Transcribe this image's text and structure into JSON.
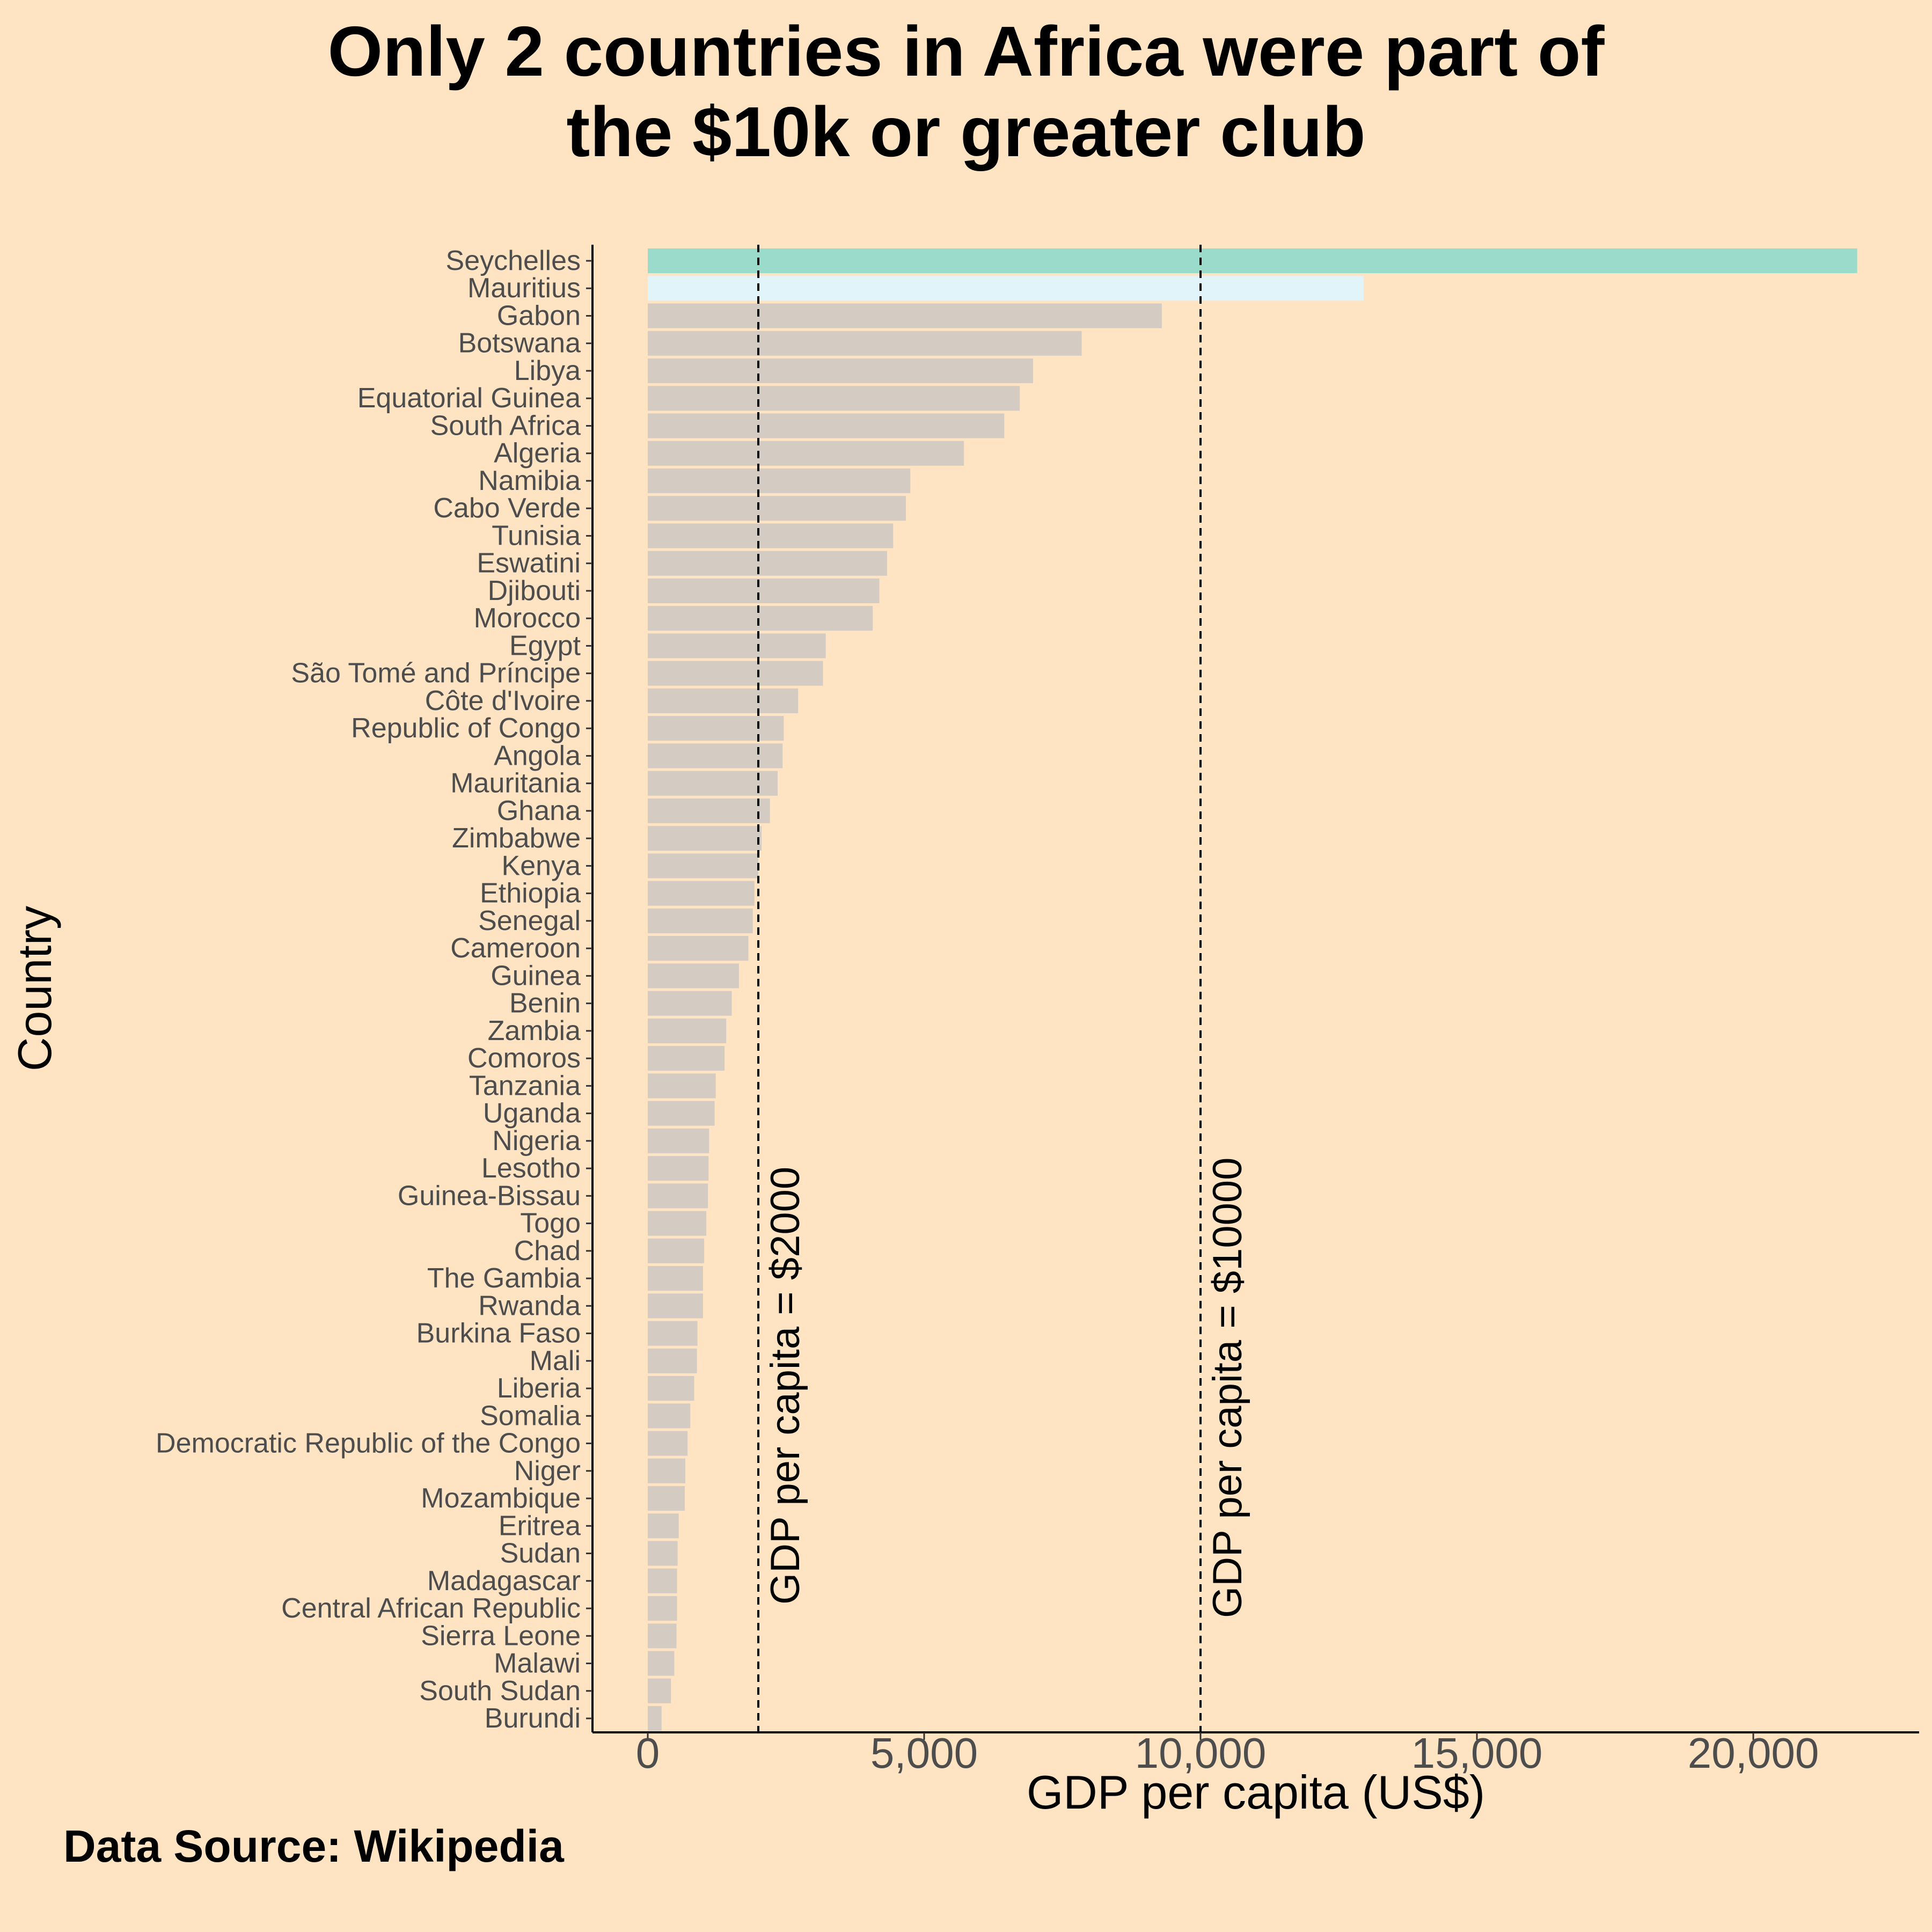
{
  "chart_data": {
    "type": "bar",
    "orientation": "horizontal",
    "title_lines": [
      "Only 2 countries in Africa were part of",
      "the $10k or greater club"
    ],
    "xlabel": "GDP per capita (US$)",
    "ylabel": "Country",
    "caption": "Data Source: Wikipedia",
    "xlim": [
      -1000,
      23000
    ],
    "xticks": [
      0,
      5000,
      10000,
      15000,
      20000
    ],
    "xtick_labels": [
      "0",
      "5,000",
      "10,000",
      "15,000",
      "20,000"
    ],
    "grid": false,
    "reference_lines": [
      {
        "x": 2000,
        "label": "GDP per capita = $2000"
      },
      {
        "x": 10000,
        "label": "GDP per capita = $10000"
      }
    ],
    "colors": {
      "background": "#FFE4C4",
      "default_bar": "#D4CBC2",
      "seychelles_bar": "#9ADBCB",
      "mauritius_bar": "#E0F4FA"
    },
    "categories": [
      "Seychelles",
      "Mauritius",
      "Gabon",
      "Botswana",
      "Libya",
      "Equatorial Guinea",
      "South Africa",
      "Algeria",
      "Namibia",
      "Cabo Verde",
      "Tunisia",
      "Eswatini",
      "Djibouti",
      "Morocco",
      "Egypt",
      "São Tomé and Príncipe",
      "Côte d'Ivoire",
      "Republic of Congo",
      "Angola",
      "Mauritania",
      "Ghana",
      "Zimbabwe",
      "Kenya",
      "Ethiopia",
      "Senegal",
      "Cameroon",
      "Guinea",
      "Benin",
      "Zambia",
      "Comoros",
      "Tanzania",
      "Uganda",
      "Nigeria",
      "Lesotho",
      "Guinea-Bissau",
      "Togo",
      "Chad",
      "The Gambia",
      "Rwanda",
      "Burkina Faso",
      "Mali",
      "Liberia",
      "Somalia",
      "Democratic Republic of the Congo",
      "Niger",
      "Mozambique",
      "Eritrea",
      "Sudan",
      "Madagascar",
      "Central African Republic",
      "Sierra Leone",
      "Malawi",
      "South Sudan",
      "Burundi"
    ],
    "values": [
      21880,
      12950,
      9300,
      7850,
      6970,
      6730,
      6450,
      5720,
      4750,
      4670,
      4440,
      4330,
      4190,
      4070,
      3220,
      3170,
      2720,
      2460,
      2440,
      2350,
      2210,
      2060,
      2000,
      1930,
      1900,
      1820,
      1650,
      1520,
      1420,
      1390,
      1230,
      1210,
      1110,
      1100,
      1090,
      1060,
      1020,
      1000,
      1000,
      900,
      890,
      840,
      770,
      720,
      680,
      670,
      560,
      540,
      530,
      530,
      520,
      480,
      420,
      250
    ]
  }
}
